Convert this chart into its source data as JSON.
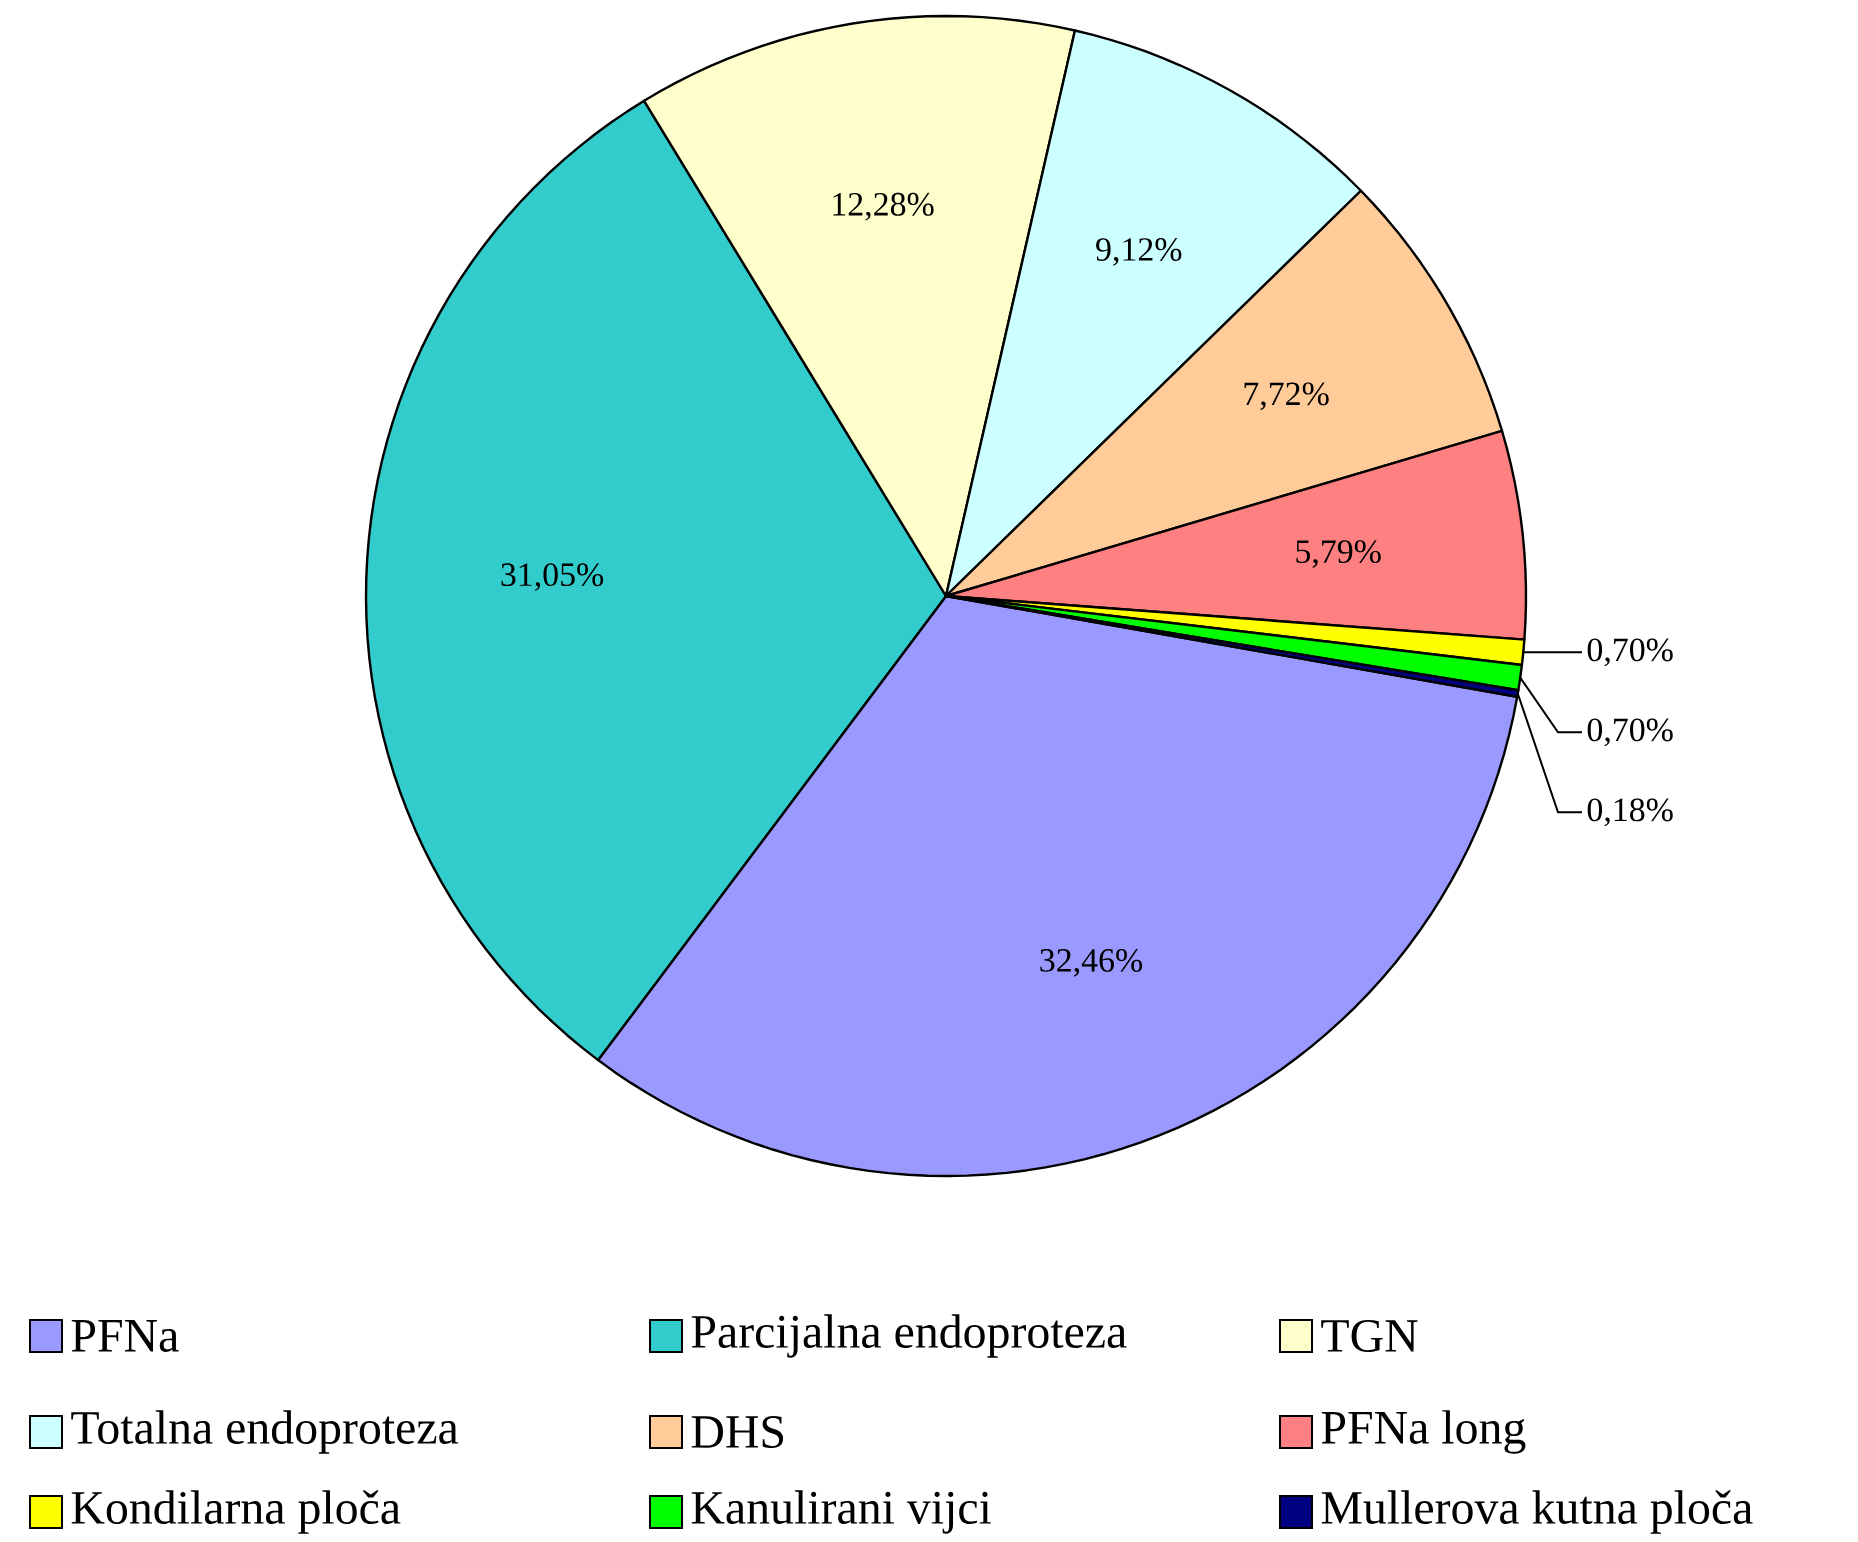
{
  "chart_data": {
    "type": "pie",
    "categories": [
      "PFNa",
      "Parcijalna endoproteza",
      "TGN",
      "Totalna endoproteza",
      "DHS",
      "PFNa long",
      "Kondilarna ploča",
      "Kanulirani vijci",
      "Mullerova kutna ploča"
    ],
    "values": [
      32.46,
      31.05,
      12.28,
      9.12,
      7.72,
      5.79,
      0.7,
      0.7,
      0.18
    ],
    "colors": [
      "#9999ff",
      "#33cccc",
      "#ffffcc",
      "#ccffff",
      "#ffcc99",
      "#ff8080",
      "#ffff00",
      "#00ff00",
      "#000080"
    ],
    "value_labels": [
      "32,46%",
      "31,05%",
      "12,28%",
      "9,12%",
      "7,72%",
      "5,79%",
      "0,70%",
      "0,70%",
      "0,18%"
    ],
    "legend": "bottom"
  }
}
